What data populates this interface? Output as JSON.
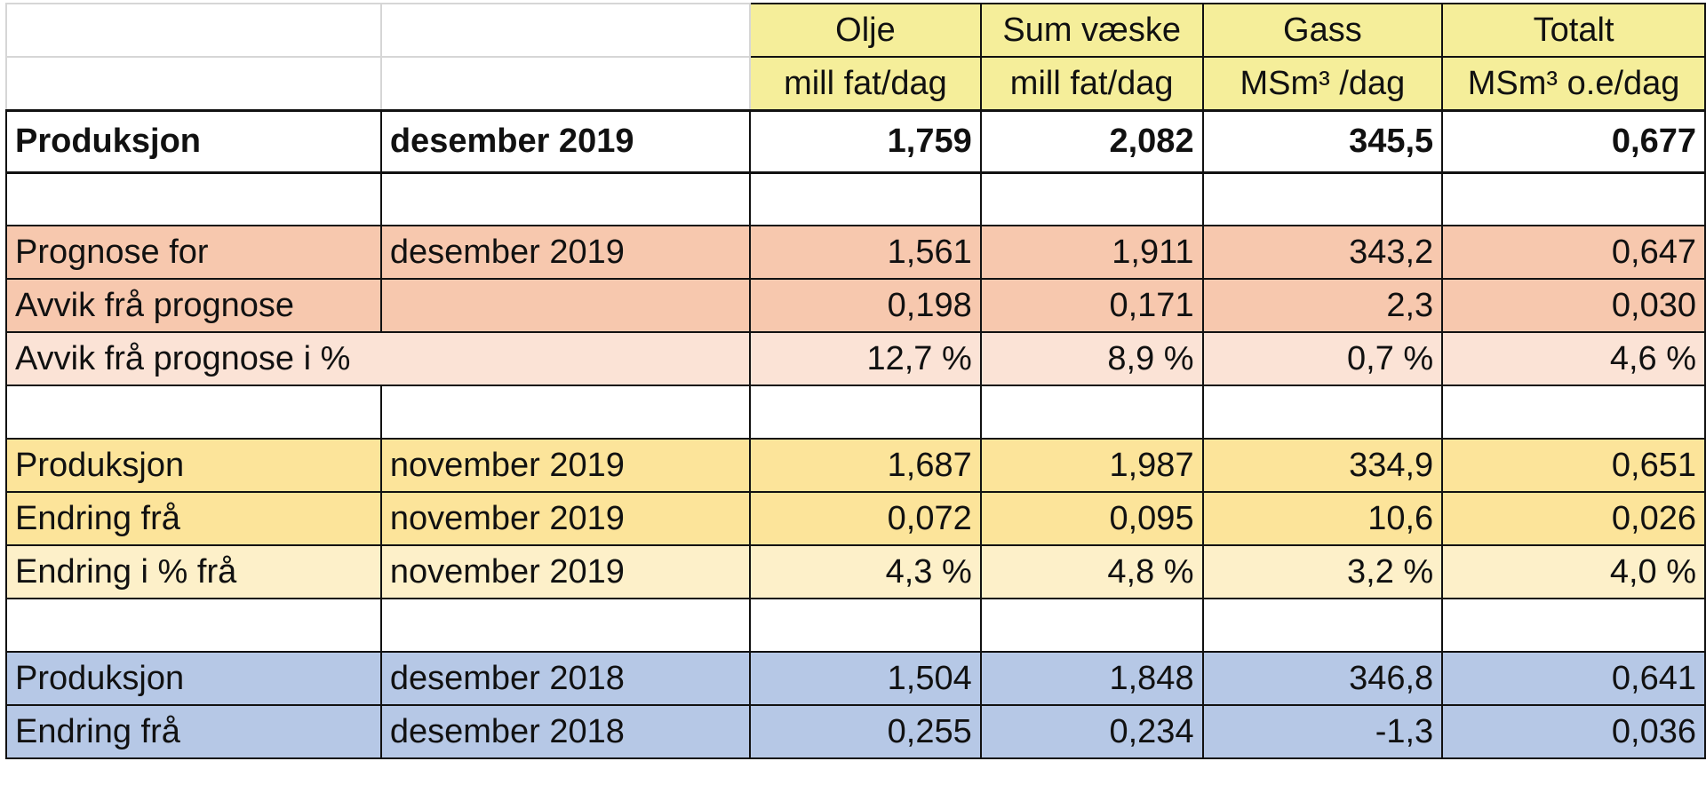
{
  "header": {
    "columns": [
      {
        "name": "Olje",
        "unit": "mill fat/dag"
      },
      {
        "name": "Sum væske",
        "unit": "mill fat/dag"
      },
      {
        "name": "Gass",
        "unit": "MSm³ /dag"
      },
      {
        "name": "Totalt",
        "unit": "MSm³ o.e/dag"
      }
    ]
  },
  "rows": {
    "main": {
      "label": "Produksjon",
      "period": "desember 2019",
      "values": [
        "1,759",
        "2,082",
        "345,5",
        "0,677"
      ]
    },
    "forecast": {
      "label": "Prognose for",
      "period": "desember 2019",
      "values": [
        "1,561",
        "1,911",
        "343,2",
        "0,647"
      ]
    },
    "deviation": {
      "label": "Avvik frå prognose",
      "period": "",
      "values": [
        "0,198",
        "0,171",
        "2,3",
        "0,030"
      ]
    },
    "deviation_pct": {
      "label": "Avvik frå prognose i %",
      "values": [
        "12,7 %",
        "8,9 %",
        "0,7 %",
        "4,6 %"
      ]
    },
    "prev_month": {
      "label": "Produksjon",
      "period": "november 2019",
      "values": [
        "1,687",
        "1,987",
        "334,9",
        "0,651"
      ]
    },
    "change_month": {
      "label": "Endring frå",
      "period": "november 2019",
      "values": [
        "0,072",
        "0,095",
        "10,6",
        "0,026"
      ]
    },
    "change_month_pct": {
      "label": "Endring i % frå",
      "period": "november 2019",
      "values": [
        "4,3 %",
        "4,8 %",
        "3,2 %",
        "4,0 %"
      ]
    },
    "prev_year": {
      "label": "Produksjon",
      "period": "desember 2018",
      "values": [
        "1,504",
        "1,848",
        "346,8",
        "0,641"
      ]
    },
    "change_year": {
      "label": "Endring frå",
      "period": "desember 2018",
      "values": [
        "0,255",
        "0,234",
        "-1,3",
        "0,036"
      ]
    }
  },
  "colors": {
    "header_yellow": "#f5ee9a",
    "salmon": "#f7c8ae",
    "salmon_light": "#fbe3d6",
    "yellow": "#fce49a",
    "yellow_light": "#fdf0c9",
    "blue": "#b6c8e6"
  }
}
